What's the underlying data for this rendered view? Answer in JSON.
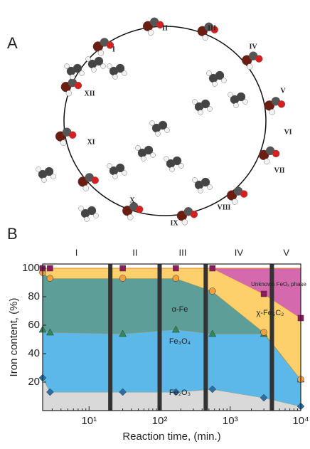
{
  "panel_a": {
    "label": "A",
    "steps": [
      "I",
      "II",
      "III",
      "IV",
      "V",
      "VI",
      "VII",
      "VIII",
      "IX",
      "X",
      "XI",
      "XII"
    ]
  },
  "panel_b": {
    "label": "B"
  },
  "chart_data": {
    "type": "area",
    "xlabel": "Reaction time, (min.)",
    "ylabel": "Iron content, (%)",
    "x": [
      2.2,
      2.8,
      30,
      170,
      560,
      3000,
      10000
    ],
    "series": [
      {
        "name": "Fe₂O₃",
        "color": "#d9d9d9",
        "marker": "diamond",
        "marker_color": "#2a6fa8",
        "values": [
          23,
          13,
          13,
          13,
          15,
          9,
          3
        ]
      },
      {
        "name": "Fe₃O₄",
        "color": "#5bb8e8",
        "marker": "triangle",
        "marker_color": "#2e8b57",
        "values": [
          34,
          42,
          41,
          44,
          39,
          45,
          19
        ]
      },
      {
        "name": "α-Fe",
        "color": "#5e9e98",
        "marker": "circle",
        "marker_color": "#f4a040",
        "values": [
          40,
          38,
          39,
          36,
          30,
          1,
          0
        ]
      },
      {
        "name": "χ-Fe₅C₂",
        "color": "#fdd06b",
        "marker": "square",
        "marker_color": "#8b1a5e",
        "values": [
          3,
          7,
          7,
          7,
          16,
          27,
          43
        ]
      },
      {
        "name": "Unknown FeOₓ phase",
        "color": "#d46aad",
        "values": [
          0,
          0,
          0,
          0,
          0,
          18,
          35
        ]
      }
    ],
    "phases": {
      "labels": [
        "I",
        "II",
        "III",
        "IV",
        "V"
      ],
      "boundaries": [
        20,
        100,
        450,
        3900
      ]
    },
    "xlim": [
      2.2,
      10000
    ],
    "xscale": "log",
    "xticks": [
      {
        "value": 10,
        "label": "10¹"
      },
      {
        "value": 100,
        "label": "10²"
      },
      {
        "value": 1000,
        "label": "10³"
      },
      {
        "value": 10000,
        "label": "10⁴"
      }
    ],
    "ylim": [
      0,
      103
    ],
    "yticks": [
      20,
      40,
      60,
      80,
      100
    ]
  }
}
